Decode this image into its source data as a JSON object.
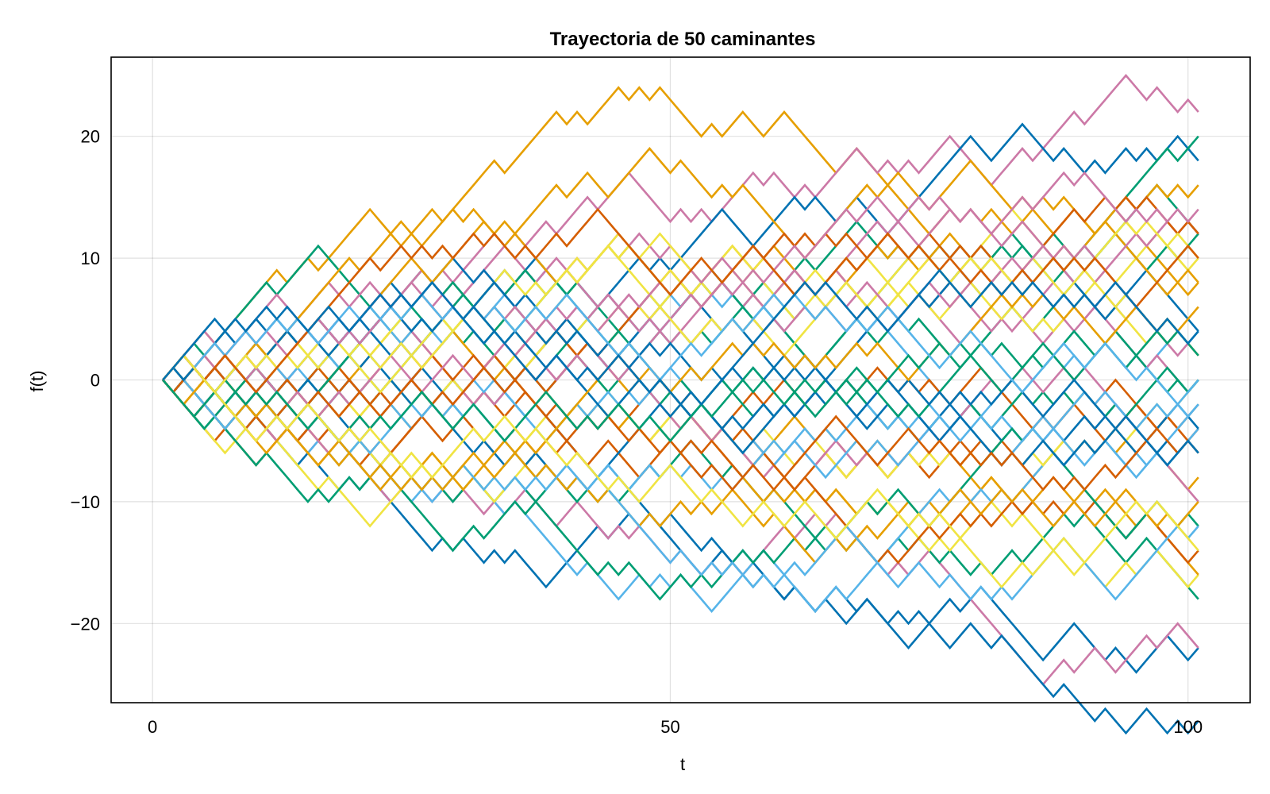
{
  "chart_data": {
    "type": "line",
    "title": "Trayectoria de 50 caminantes",
    "xlabel": "t",
    "ylabel": "f(t)",
    "xlim": [
      -4,
      106
    ],
    "ylim": [
      -26.5,
      26.5
    ],
    "xticks": [
      0,
      50,
      100
    ],
    "xtick_labels": [
      "0",
      "50",
      "100"
    ],
    "yticks": [
      -20,
      -10,
      0,
      10,
      20
    ],
    "ytick_labels": [
      "−20",
      "−10",
      "0",
      "10",
      "20"
    ],
    "grid": true,
    "legend": "none",
    "n_walkers": 50,
    "steps": 100,
    "t_start": 1,
    "palette": [
      "#0072b2",
      "#e69f00",
      "#009e73",
      "#cc79a7",
      "#56b4e9",
      "#d55e00",
      "#f0e442"
    ],
    "highlighted_series": [
      {
        "values_at": [
          [
            1,
            0
          ],
          [
            12,
            10
          ],
          [
            20,
            13
          ],
          [
            26,
            10
          ],
          [
            31,
            18
          ],
          [
            38,
            21
          ],
          [
            45,
            23
          ],
          [
            53,
            20
          ],
          [
            60,
            21
          ],
          [
            66,
            17
          ],
          [
            72,
            14
          ]
        ],
        "color": "#e69f00"
      },
      {
        "values_at": [
          [
            1,
            0
          ],
          [
            20,
            -10
          ],
          [
            25,
            -12
          ],
          [
            31,
            -14
          ],
          [
            38,
            -17
          ],
          [
            46,
            -12
          ],
          [
            55,
            -15
          ],
          [
            62,
            -17
          ],
          [
            70,
            -19
          ],
          [
            80,
            -16
          ],
          [
            86,
            -24
          ],
          [
            100,
            -22
          ]
        ],
        "color": "#0072b2"
      },
      {
        "values_at": [
          [
            1,
            0
          ],
          [
            40,
            -10
          ],
          [
            50,
            -16
          ],
          [
            60,
            -13
          ],
          [
            70,
            -15
          ],
          [
            84,
            -23
          ],
          [
            95,
            -23
          ],
          [
            101,
            -21
          ]
        ],
        "color": "#cc79a7"
      },
      {
        "values_at": [
          [
            1,
            0
          ],
          [
            30,
            9
          ],
          [
            40,
            12
          ],
          [
            48,
            14
          ],
          [
            60,
            17
          ],
          [
            70,
            16
          ],
          [
            80,
            17
          ],
          [
            90,
            21
          ],
          [
            100,
            24
          ]
        ],
        "color": "#cc79a7"
      },
      {
        "values_at": [
          [
            1,
            0
          ],
          [
            30,
            5
          ],
          [
            45,
            8
          ],
          [
            55,
            14
          ],
          [
            70,
            14
          ],
          [
            85,
            19
          ],
          [
            95,
            17
          ],
          [
            101,
            18
          ]
        ],
        "color": "#0072b2"
      },
      {
        "values_at": [
          [
            1,
            0
          ],
          [
            40,
            3
          ],
          [
            60,
            8
          ],
          [
            80,
            12
          ],
          [
            95,
            16
          ],
          [
            101,
            20
          ]
        ],
        "color": "#009e73"
      },
      {
        "values_at": [
          [
            1,
            0
          ],
          [
            30,
            -10
          ],
          [
            60,
            -10
          ],
          [
            85,
            -14
          ],
          [
            98,
            -16
          ],
          [
            101,
            -18
          ]
        ],
        "color": "#009e73"
      },
      {
        "values_at": [
          [
            1,
            0
          ],
          [
            30,
            -8
          ],
          [
            60,
            -8
          ],
          [
            80,
            -10
          ],
          [
            95,
            -17
          ],
          [
            101,
            -16
          ]
        ],
        "color": "#f0e442"
      }
    ]
  }
}
